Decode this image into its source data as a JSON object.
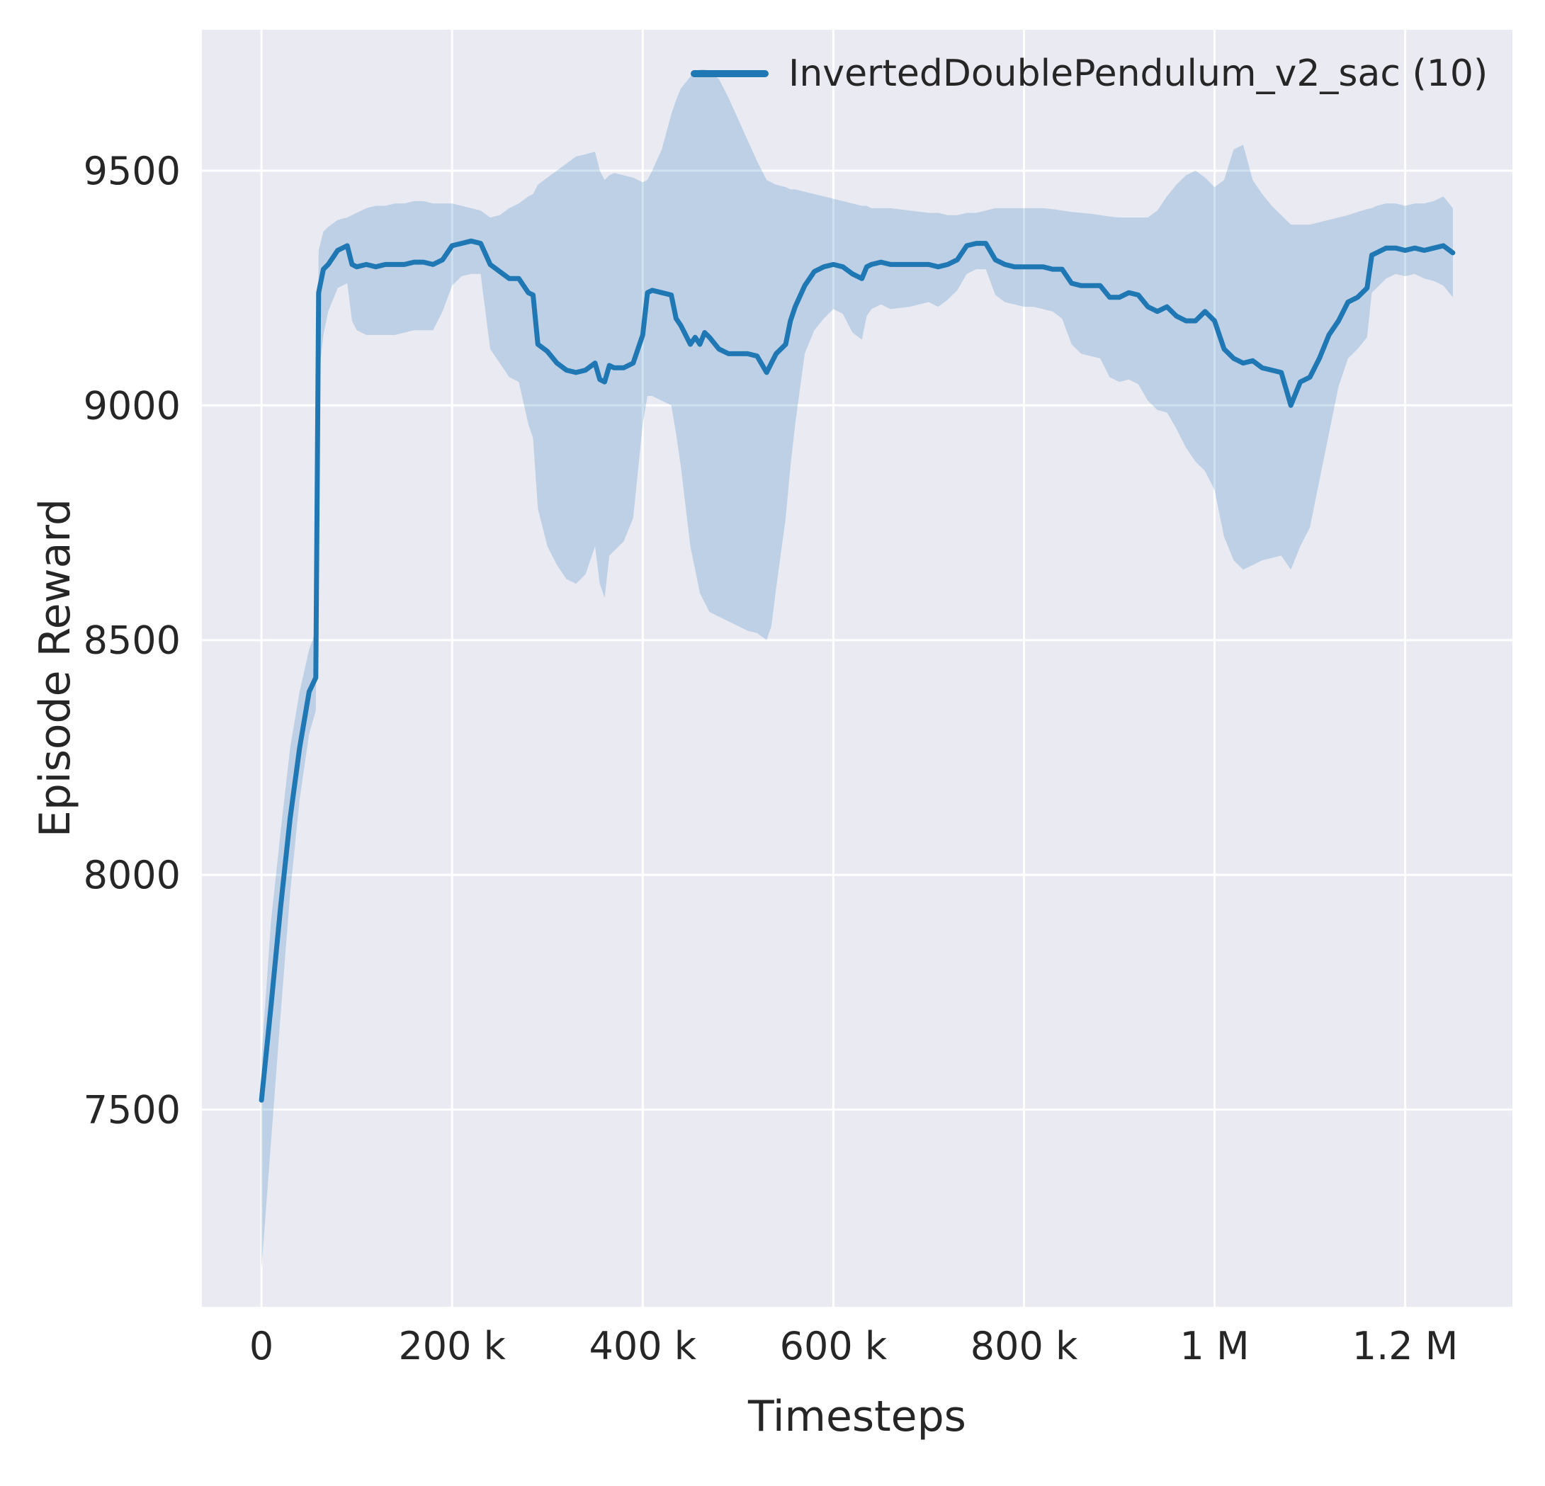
{
  "chart_data": {
    "type": "line",
    "title": "",
    "xlabel": "Timesteps",
    "ylabel": "Episode Reward",
    "legend": [
      {
        "label": "InvertedDoublePendulum_v2_sac (10)",
        "color": "#1f77b4"
      }
    ],
    "legend_position": "upper center-right inside plot",
    "grid": true,
    "plot_bg": "#eaeaf2",
    "grid_color": "#ffffff",
    "text_color": "#262626",
    "xlim": [
      -62500,
      1312500
    ],
    "ylim": [
      7080,
      9800
    ],
    "x_ticks": [
      {
        "value": 0,
        "label": "0"
      },
      {
        "value": 200000,
        "label": "200 k"
      },
      {
        "value": 400000,
        "label": "400 k"
      },
      {
        "value": 600000,
        "label": "600 k"
      },
      {
        "value": 800000,
        "label": "800 k"
      },
      {
        "value": 1000000,
        "label": "1 M"
      },
      {
        "value": 1200000,
        "label": "1.2 M"
      }
    ],
    "y_ticks": [
      {
        "value": 7500,
        "label": "7500"
      },
      {
        "value": 8000,
        "label": "8000"
      },
      {
        "value": 8500,
        "label": "8500"
      },
      {
        "value": 9000,
        "label": "9000"
      },
      {
        "value": 9500,
        "label": "9500"
      }
    ],
    "series": [
      {
        "name": "InvertedDoublePendulum_v2_sac (10)",
        "color": "#1f77b4",
        "line_width": 7,
        "band_opacity": 0.22,
        "points_format": [
          "timestep",
          "mean_episode_reward",
          "band_low",
          "band_high"
        ],
        "points": [
          [
            0,
            7520,
            7160,
            7610
          ],
          [
            10000,
            7720,
            7430,
            7900
          ],
          [
            20000,
            7930,
            7700,
            8090
          ],
          [
            30000,
            8120,
            7960,
            8270
          ],
          [
            40000,
            8270,
            8160,
            8390
          ],
          [
            50000,
            8390,
            8300,
            8480
          ],
          [
            57000,
            8420,
            8350,
            8520
          ],
          [
            60000,
            9240,
            9060,
            9330
          ],
          [
            65000,
            9290,
            9150,
            9370
          ],
          [
            70000,
            9300,
            9200,
            9380
          ],
          [
            80000,
            9330,
            9250,
            9395
          ],
          [
            90000,
            9340,
            9260,
            9400
          ],
          [
            95000,
            9300,
            9180,
            9405
          ],
          [
            100000,
            9295,
            9160,
            9410
          ],
          [
            110000,
            9300,
            9150,
            9420
          ],
          [
            120000,
            9295,
            9150,
            9425
          ],
          [
            130000,
            9300,
            9150,
            9425
          ],
          [
            140000,
            9300,
            9150,
            9430
          ],
          [
            150000,
            9300,
            9155,
            9430
          ],
          [
            160000,
            9305,
            9160,
            9435
          ],
          [
            170000,
            9305,
            9160,
            9435
          ],
          [
            180000,
            9300,
            9160,
            9430
          ],
          [
            190000,
            9310,
            9200,
            9430
          ],
          [
            200000,
            9340,
            9255,
            9430
          ],
          [
            210000,
            9345,
            9275,
            9425
          ],
          [
            220000,
            9350,
            9280,
            9420
          ],
          [
            230000,
            9345,
            9280,
            9415
          ],
          [
            240000,
            9300,
            9120,
            9400
          ],
          [
            250000,
            9285,
            9090,
            9405
          ],
          [
            260000,
            9270,
            9060,
            9420
          ],
          [
            270000,
            9270,
            9050,
            9430
          ],
          [
            280000,
            9240,
            8960,
            9445
          ],
          [
            285000,
            9235,
            8930,
            9450
          ],
          [
            290000,
            9130,
            8780,
            9470
          ],
          [
            300000,
            9115,
            8700,
            9485
          ],
          [
            310000,
            9090,
            8660,
            9500
          ],
          [
            320000,
            9075,
            8630,
            9515
          ],
          [
            330000,
            9070,
            8620,
            9530
          ],
          [
            340000,
            9075,
            8640,
            9535
          ],
          [
            350000,
            9090,
            8700,
            9540
          ],
          [
            355000,
            9055,
            8620,
            9500
          ],
          [
            360000,
            9050,
            8590,
            9480
          ],
          [
            365000,
            9085,
            8680,
            9490
          ],
          [
            370000,
            9080,
            8690,
            9495
          ],
          [
            380000,
            9080,
            8710,
            9490
          ],
          [
            390000,
            9090,
            8760,
            9485
          ],
          [
            400000,
            9150,
            8960,
            9475
          ],
          [
            405000,
            9240,
            9020,
            9480
          ],
          [
            410000,
            9245,
            9020,
            9500
          ],
          [
            420000,
            9240,
            9010,
            9545
          ],
          [
            430000,
            9235,
            9000,
            9620
          ],
          [
            435000,
            9185,
            8940,
            9650
          ],
          [
            440000,
            9170,
            8870,
            9675
          ],
          [
            450000,
            9130,
            8700,
            9700
          ],
          [
            455000,
            9145,
            8650,
            9710
          ],
          [
            460000,
            9130,
            8600,
            9715
          ],
          [
            465000,
            9155,
            8580,
            9715
          ],
          [
            470000,
            9145,
            8560,
            9710
          ],
          [
            480000,
            9120,
            8550,
            9695
          ],
          [
            490000,
            9110,
            8540,
            9655
          ],
          [
            500000,
            9110,
            8530,
            9610
          ],
          [
            510000,
            9110,
            8520,
            9565
          ],
          [
            520000,
            9105,
            8515,
            9520
          ],
          [
            530000,
            9070,
            8500,
            9480
          ],
          [
            535000,
            9090,
            8530,
            9475
          ],
          [
            540000,
            9110,
            8610,
            9470
          ],
          [
            550000,
            9130,
            8760,
            9465
          ],
          [
            555000,
            9180,
            8870,
            9460
          ],
          [
            560000,
            9210,
            8960,
            9460
          ],
          [
            570000,
            9255,
            9110,
            9455
          ],
          [
            580000,
            9285,
            9160,
            9450
          ],
          [
            590000,
            9295,
            9185,
            9445
          ],
          [
            600000,
            9300,
            9205,
            9440
          ],
          [
            610000,
            9295,
            9195,
            9435
          ],
          [
            620000,
            9280,
            9155,
            9430
          ],
          [
            630000,
            9270,
            9140,
            9425
          ],
          [
            635000,
            9295,
            9190,
            9425
          ],
          [
            640000,
            9300,
            9205,
            9420
          ],
          [
            650000,
            9305,
            9215,
            9420
          ],
          [
            660000,
            9300,
            9205,
            9420
          ],
          [
            680000,
            9300,
            9210,
            9415
          ],
          [
            700000,
            9300,
            9220,
            9410
          ],
          [
            710000,
            9295,
            9210,
            9410
          ],
          [
            720000,
            9300,
            9225,
            9405
          ],
          [
            730000,
            9310,
            9245,
            9405
          ],
          [
            740000,
            9340,
            9280,
            9410
          ],
          [
            750000,
            9345,
            9290,
            9410
          ],
          [
            760000,
            9345,
            9290,
            9415
          ],
          [
            770000,
            9310,
            9235,
            9420
          ],
          [
            780000,
            9300,
            9220,
            9420
          ],
          [
            790000,
            9295,
            9215,
            9420
          ],
          [
            800000,
            9295,
            9210,
            9420
          ],
          [
            810000,
            9295,
            9210,
            9420
          ],
          [
            820000,
            9295,
            9205,
            9420
          ],
          [
            830000,
            9290,
            9200,
            9418
          ],
          [
            840000,
            9290,
            9185,
            9415
          ],
          [
            850000,
            9260,
            9130,
            9412
          ],
          [
            860000,
            9255,
            9110,
            9410
          ],
          [
            870000,
            9255,
            9105,
            9408
          ],
          [
            880000,
            9255,
            9100,
            9405
          ],
          [
            890000,
            9230,
            9060,
            9402
          ],
          [
            900000,
            9230,
            9050,
            9400
          ],
          [
            910000,
            9240,
            9055,
            9400
          ],
          [
            920000,
            9235,
            9045,
            9400
          ],
          [
            930000,
            9210,
            9010,
            9400
          ],
          [
            940000,
            9200,
            8990,
            9415
          ],
          [
            950000,
            9210,
            8985,
            9445
          ],
          [
            960000,
            9190,
            8950,
            9470
          ],
          [
            970000,
            9180,
            8910,
            9490
          ],
          [
            980000,
            9180,
            8880,
            9500
          ],
          [
            990000,
            9200,
            8860,
            9485
          ],
          [
            1000000,
            9180,
            8820,
            9465
          ],
          [
            1010000,
            9120,
            8720,
            9480
          ],
          [
            1020000,
            9100,
            8670,
            9545
          ],
          [
            1030000,
            9090,
            8650,
            9555
          ],
          [
            1040000,
            9095,
            8660,
            9480
          ],
          [
            1050000,
            9080,
            8670,
            9450
          ],
          [
            1060000,
            9075,
            8675,
            9425
          ],
          [
            1070000,
            9070,
            8680,
            9405
          ],
          [
            1080000,
            9000,
            8650,
            9385
          ],
          [
            1090000,
            9050,
            8700,
            9385
          ],
          [
            1100000,
            9060,
            8740,
            9385
          ],
          [
            1110000,
            9100,
            8840,
            9390
          ],
          [
            1120000,
            9150,
            8940,
            9395
          ],
          [
            1130000,
            9180,
            9040,
            9400
          ],
          [
            1140000,
            9220,
            9100,
            9405
          ],
          [
            1150000,
            9230,
            9120,
            9412
          ],
          [
            1160000,
            9250,
            9145,
            9418
          ],
          [
            1165000,
            9320,
            9240,
            9420
          ],
          [
            1170000,
            9325,
            9250,
            9425
          ],
          [
            1180000,
            9335,
            9270,
            9430
          ],
          [
            1190000,
            9335,
            9280,
            9430
          ],
          [
            1200000,
            9330,
            9275,
            9425
          ],
          [
            1210000,
            9335,
            9280,
            9430
          ],
          [
            1220000,
            9330,
            9270,
            9430
          ],
          [
            1230000,
            9335,
            9265,
            9435
          ],
          [
            1240000,
            9340,
            9255,
            9445
          ],
          [
            1250000,
            9325,
            9230,
            9420
          ]
        ]
      }
    ]
  }
}
